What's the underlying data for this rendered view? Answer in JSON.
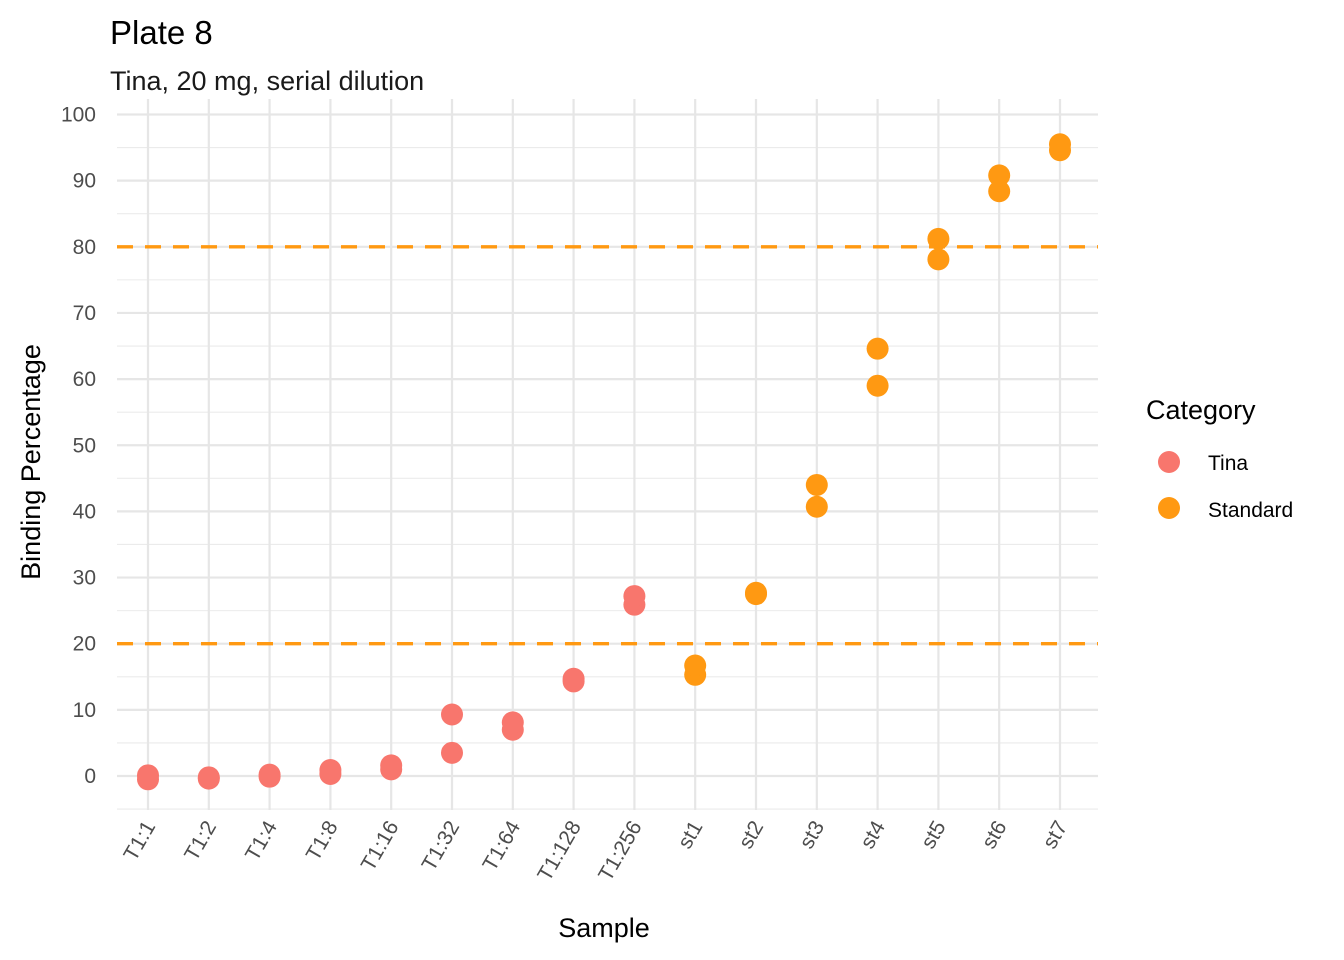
{
  "chart_data": {
    "type": "scatter",
    "title": "Plate 8",
    "subtitle": "Tina, 20 mg, serial dilution",
    "xlabel": "Sample",
    "ylabel": "Binding Percentage",
    "categories": [
      "T1:1",
      "T1:2",
      "T1:4",
      "T1:8",
      "T1:16",
      "T1:32",
      "T1:64",
      "T1:128",
      "T1:256",
      "st1",
      "st2",
      "st3",
      "st4",
      "st5",
      "st6",
      "st7"
    ],
    "ylim": [
      -5,
      100
    ],
    "y_ticks": [
      0,
      10,
      20,
      30,
      40,
      50,
      60,
      70,
      80,
      90,
      100
    ],
    "grid": true,
    "legend": {
      "title": "Category",
      "position": "right"
    },
    "reference_lines": [
      {
        "y": 80,
        "color": "#FF9912",
        "style": "dashed"
      },
      {
        "y": 20,
        "color": "#FF9912",
        "style": "dashed"
      }
    ],
    "series": [
      {
        "name": "Tina",
        "color": "#F8766D",
        "points": [
          {
            "x": "T1:1",
            "y": -0.5
          },
          {
            "x": "T1:1",
            "y": 0.1
          },
          {
            "x": "T1:2",
            "y": -0.4
          },
          {
            "x": "T1:2",
            "y": -0.2
          },
          {
            "x": "T1:4",
            "y": -0.1
          },
          {
            "x": "T1:4",
            "y": 0.2
          },
          {
            "x": "T1:8",
            "y": 0.3
          },
          {
            "x": "T1:8",
            "y": 0.9
          },
          {
            "x": "T1:16",
            "y": 1.0
          },
          {
            "x": "T1:16",
            "y": 1.6
          },
          {
            "x": "T1:32",
            "y": 3.5
          },
          {
            "x": "T1:32",
            "y": 9.3
          },
          {
            "x": "T1:64",
            "y": 7.0
          },
          {
            "x": "T1:64",
            "y": 8.1
          },
          {
            "x": "T1:128",
            "y": 14.3
          },
          {
            "x": "T1:128",
            "y": 14.7
          },
          {
            "x": "T1:256",
            "y": 25.9
          },
          {
            "x": "T1:256",
            "y": 27.2
          }
        ]
      },
      {
        "name": "Standard",
        "color": "#FF9912",
        "points": [
          {
            "x": "st1",
            "y": 15.3
          },
          {
            "x": "st1",
            "y": 16.7
          },
          {
            "x": "st2",
            "y": 27.5
          },
          {
            "x": "st2",
            "y": 27.7
          },
          {
            "x": "st3",
            "y": 40.7
          },
          {
            "x": "st3",
            "y": 44.0
          },
          {
            "x": "st4",
            "y": 59.0
          },
          {
            "x": "st4",
            "y": 64.6
          },
          {
            "x": "st5",
            "y": 78.1
          },
          {
            "x": "st5",
            "y": 81.2
          },
          {
            "x": "st6",
            "y": 88.4
          },
          {
            "x": "st6",
            "y": 90.8
          },
          {
            "x": "st7",
            "y": 94.6
          },
          {
            "x": "st7",
            "y": 95.5
          }
        ]
      }
    ]
  }
}
